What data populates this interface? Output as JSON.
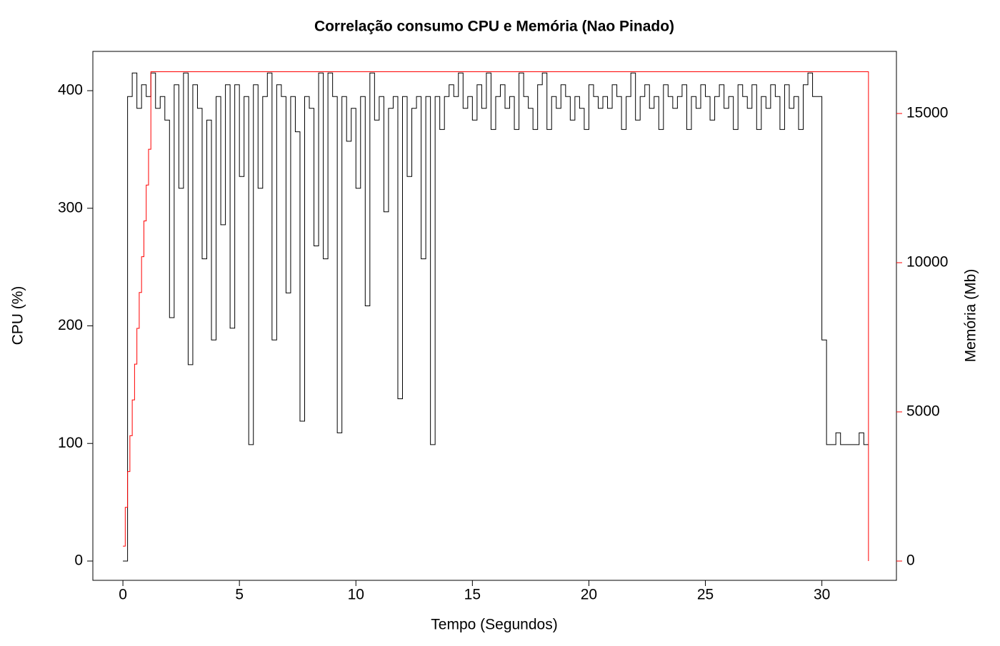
{
  "chart_data": {
    "type": "step-line",
    "title": "Correlação consumo CPU e Memória (Nao Pinado)",
    "x_label": "Tempo (Segundos)",
    "y_label": "CPU (%)",
    "y2_label": "Memória (Mb)",
    "xlim": [
      -1.29,
      33.2
    ],
    "xticks": [
      0,
      5,
      10,
      15,
      20,
      25,
      30
    ],
    "ylim": [
      -16.4,
      433.4
    ],
    "yticks": [
      0,
      100,
      200,
      300,
      400
    ],
    "y2lim": [
      -646,
      17081
    ],
    "y2ticks": [
      0,
      5000,
      10000,
      15000
    ],
    "y2_color": "#ff0000",
    "series": [
      {
        "color": "#000000",
        "x": [
          0,
          0.2,
          0.4,
          0.6,
          0.8,
          1.0,
          1.2,
          1.4,
          1.6,
          1.8,
          2.0,
          2.2,
          2.4,
          2.6,
          2.8,
          3.0,
          3.2,
          3.4,
          3.6,
          3.8,
          4.0,
          4.2,
          4.4,
          4.6,
          4.8,
          5.0,
          5.2,
          5.4,
          5.6,
          5.8,
          6.0,
          6.2,
          6.4,
          6.6,
          6.8,
          7.0,
          7.2,
          7.4,
          7.6,
          7.8,
          8.0,
          8.2,
          8.4,
          8.6,
          8.8,
          9.0,
          9.2,
          9.4,
          9.6,
          9.8,
          10.0,
          10.2,
          10.4,
          10.6,
          10.8,
          11.0,
          11.2,
          11.4,
          11.6,
          11.8,
          12.0,
          12.2,
          12.4,
          12.6,
          12.8,
          13.0,
          13.2,
          13.4,
          13.6,
          13.8,
          14.0,
          14.2,
          14.4,
          14.6,
          14.8,
          15.0,
          15.2,
          15.4,
          15.6,
          15.8,
          16.0,
          16.2,
          16.4,
          16.6,
          16.8,
          17.0,
          17.2,
          17.4,
          17.6,
          17.8,
          18.0,
          18.2,
          18.4,
          18.6,
          18.8,
          19.0,
          19.2,
          19.4,
          19.6,
          19.8,
          20.0,
          20.2,
          20.4,
          20.6,
          20.8,
          21.0,
          21.2,
          21.4,
          21.6,
          21.8,
          22.0,
          22.2,
          22.4,
          22.6,
          22.8,
          23.0,
          23.2,
          23.4,
          23.6,
          23.8,
          24.0,
          24.2,
          24.4,
          24.6,
          24.8,
          25.0,
          25.2,
          25.4,
          25.6,
          25.8,
          26.0,
          26.2,
          26.4,
          26.6,
          26.8,
          27.0,
          27.2,
          27.4,
          27.6,
          27.8,
          28.0,
          28.2,
          28.4,
          28.6,
          28.8,
          29.0,
          29.2,
          29.4,
          29.6,
          29.8,
          30.0,
          30.2,
          30.4,
          30.6,
          30.8,
          31.0,
          31.2,
          31.4,
          31.6,
          31.8,
          32.0
        ],
        "values": [
          0,
          395,
          415,
          385,
          405,
          395,
          415,
          385,
          395,
          375,
          207,
          405,
          317,
          415,
          167,
          405,
          385,
          257,
          375,
          188,
          395,
          286,
          405,
          198,
          405,
          327,
          395,
          99,
          405,
          317,
          395,
          415,
          188,
          405,
          395,
          228,
          395,
          365,
          119,
          395,
          385,
          268,
          415,
          257,
          415,
          395,
          109,
          395,
          357,
          385,
          317,
          395,
          217,
          415,
          375,
          395,
          297,
          385,
          395,
          138,
          395,
          327,
          385,
          395,
          257,
          395,
          99,
          395,
          367,
          395,
          405,
          395,
          415,
          385,
          395,
          375,
          405,
          385,
          415,
          367,
          395,
          405,
          385,
          395,
          367,
          415,
          395,
          385,
          367,
          405,
          415,
          367,
          395,
          385,
          405,
          395,
          375,
          395,
          385,
          367,
          405,
          395,
          385,
          395,
          385,
          405,
          395,
          367,
          395,
          415,
          375,
          395,
          405,
          385,
          395,
          367,
          405,
          395,
          385,
          395,
          405,
          367,
          395,
          385,
          405,
          395,
          375,
          395,
          405,
          385,
          395,
          367,
          405,
          395,
          385,
          405,
          367,
          395,
          385,
          405,
          395,
          367,
          405,
          385,
          395,
          367,
          405,
          415,
          395,
          395,
          188,
          99,
          99,
          109,
          99,
          99,
          99,
          99,
          109,
          99,
          99
        ]
      },
      {
        "color": "#ff0000",
        "axis": "y2",
        "x": [
          0,
          0.1,
          0.2,
          0.3,
          0.4,
          0.5,
          0.6,
          0.7,
          0.8,
          0.9,
          1.0,
          1.1,
          1.2,
          32
        ],
        "values": [
          500,
          1800,
          3000,
          4200,
          5400,
          6600,
          7800,
          9000,
          10200,
          11400,
          12600,
          13800,
          16400,
          0
        ]
      }
    ]
  }
}
